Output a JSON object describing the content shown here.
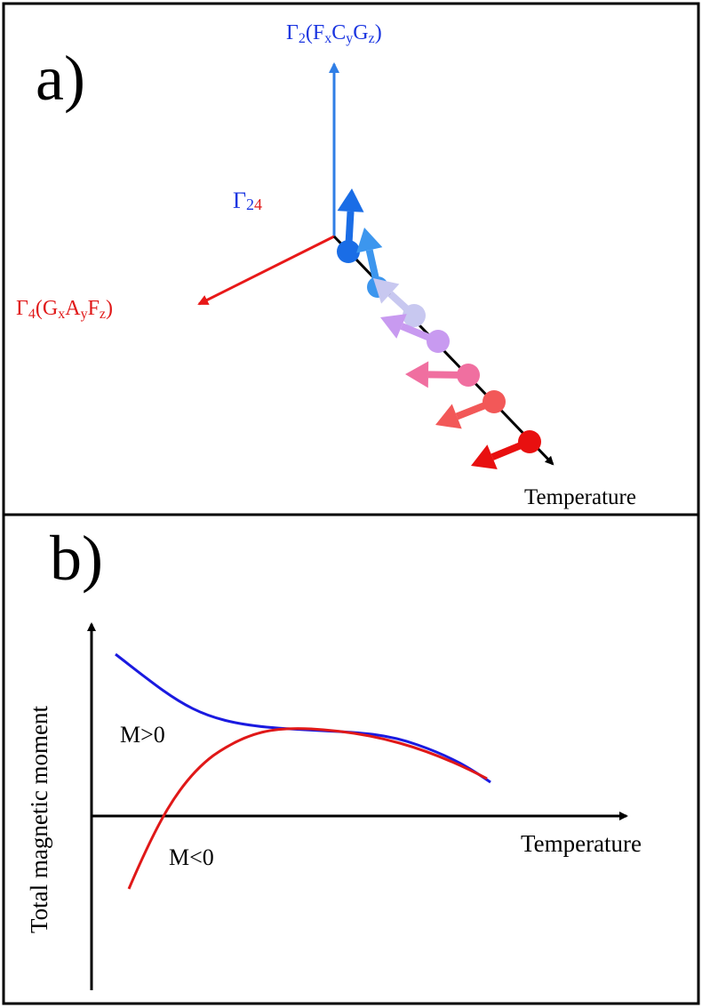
{
  "panel_a": {
    "label": "a)",
    "axis_vertical": {
      "gamma": "Γ",
      "sub": "2",
      "open": "(",
      "f": "F",
      "f_sub": "x",
      "c": "C",
      "c_sub": "y",
      "g": "G",
      "g_sub": "z",
      "close": ")",
      "color": "#1a35e0"
    },
    "axis_horizontal": {
      "gamma": "Γ",
      "sub": "4",
      "open": "(",
      "g": "G",
      "g_sub": "x",
      "a": "A",
      "a_sub": "y",
      "f": "F",
      "f_sub": "z",
      "close": ")",
      "color": "#e01818"
    },
    "mixed_label": {
      "gamma": "Γ",
      "two": "2",
      "four": "4"
    },
    "temperature_label": "Temperature",
    "vertical_axis_color": "#2f7ee6",
    "horizontal_axis_color": "#e81818"
  },
  "panel_b": {
    "label": "b)",
    "ylabel": "Total magnetic moment",
    "xlabel": "Temperature",
    "positive_label": "M>0",
    "negative_label": "M<0",
    "blue_color": "#1a1ae0",
    "red_color": "#e01818"
  }
}
